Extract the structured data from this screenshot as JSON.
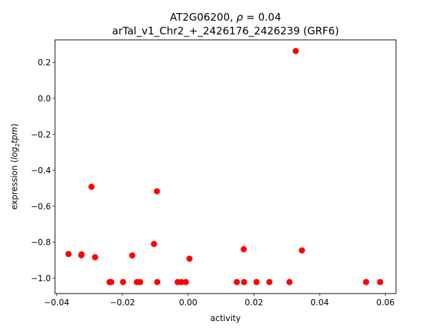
{
  "chart_data": {
    "type": "scatter",
    "title_gene": "AT2G06200",
    "title_rho": "0.04",
    "title_line2": "arTal_v1_Chr2_+_2426176_2426239 (GRF6)",
    "xlabel": "activity",
    "ylabel_prefix": "expression (",
    "ylabel_log": "log",
    "ylabel_sub": "2",
    "ylabel_tpm": "tpm",
    "ylabel_suffix": ")",
    "xlim": [
      -0.0405,
      0.0632
    ],
    "ylim": [
      -1.086,
      0.325
    ],
    "xticks": [
      -0.04,
      -0.02,
      0.0,
      0.02,
      0.04,
      0.06
    ],
    "xtick_labels": [
      "−0.04",
      "−0.02",
      "0.00",
      "0.02",
      "0.04",
      "0.06"
    ],
    "yticks": [
      0.2,
      0.0,
      -0.2,
      -0.4,
      -0.6,
      -0.8,
      -1.0
    ],
    "ytick_labels": [
      "0.2",
      "0.0",
      "−0.2",
      "−0.4",
      "−0.6",
      "−0.8",
      "−1.0"
    ],
    "marker_color": "#ff0000",
    "points": [
      {
        "x": -0.0364,
        "y": -0.866
      },
      {
        "x": -0.0325,
        "y": -0.873
      },
      {
        "x": -0.0324,
        "y": -0.868
      },
      {
        "x": -0.0294,
        "y": -0.492
      },
      {
        "x": -0.0283,
        "y": -0.884
      },
      {
        "x": -0.0239,
        "y": -1.022
      },
      {
        "x": -0.0234,
        "y": -1.022
      },
      {
        "x": -0.0198,
        "y": -1.022
      },
      {
        "x": -0.017,
        "y": -0.874
      },
      {
        "x": -0.0156,
        "y": -1.022
      },
      {
        "x": -0.0146,
        "y": -1.022
      },
      {
        "x": -0.0104,
        "y": -0.81
      },
      {
        "x": -0.0095,
        "y": -0.517
      },
      {
        "x": -0.0094,
        "y": -1.022
      },
      {
        "x": -0.0032,
        "y": -1.022
      },
      {
        "x": -0.0021,
        "y": -1.022
      },
      {
        "x": -0.0007,
        "y": -1.022
      },
      {
        "x": 0.0004,
        "y": -0.892
      },
      {
        "x": 0.0148,
        "y": -1.022
      },
      {
        "x": 0.0169,
        "y": -0.839
      },
      {
        "x": 0.017,
        "y": -1.022
      },
      {
        "x": 0.0208,
        "y": -1.022
      },
      {
        "x": 0.0247,
        "y": -1.022
      },
      {
        "x": 0.0308,
        "y": -1.022
      },
      {
        "x": 0.0327,
        "y": 0.263
      },
      {
        "x": 0.0346,
        "y": -0.846
      },
      {
        "x": 0.0541,
        "y": -1.022
      },
      {
        "x": 0.0584,
        "y": -1.022
      }
    ]
  }
}
